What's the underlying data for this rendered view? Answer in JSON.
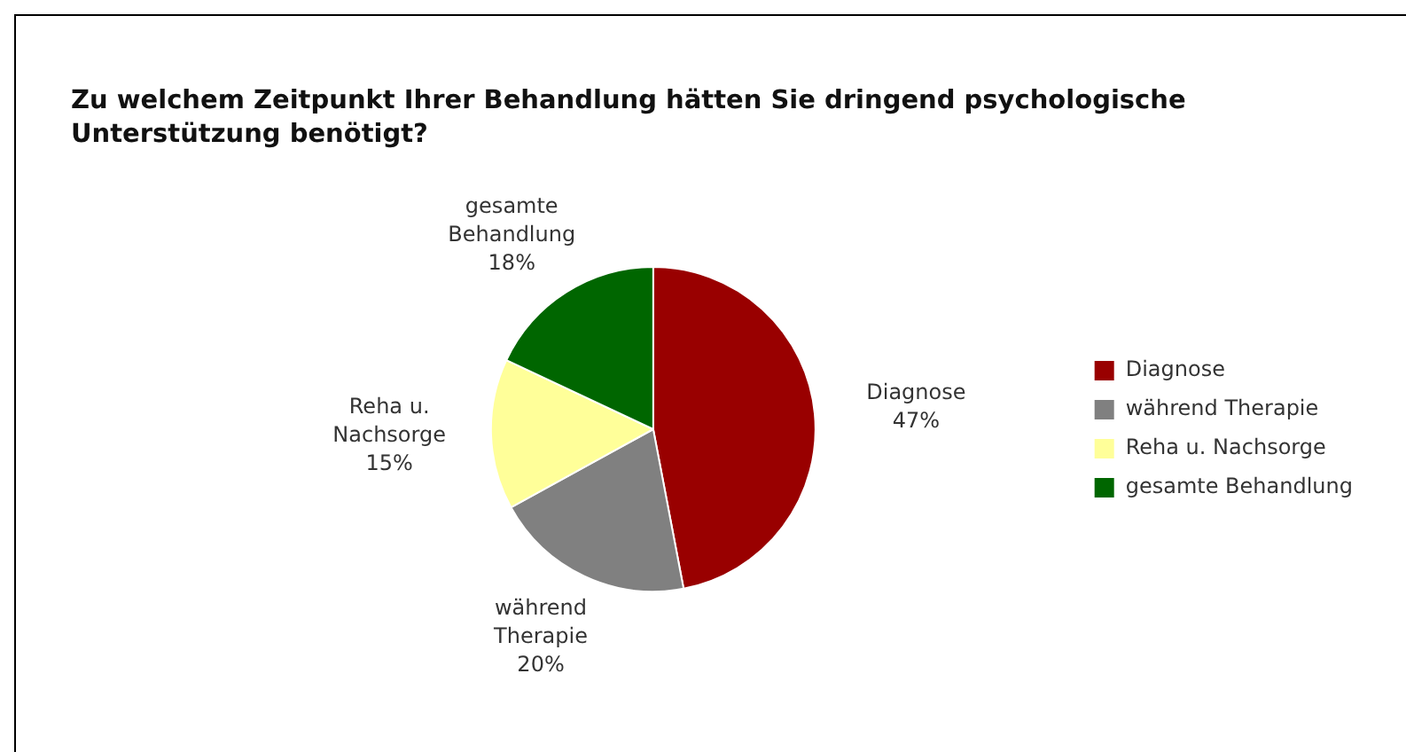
{
  "chart_data": {
    "type": "pie",
    "title": "Zu welchem Zeitpunkt Ihrer Behandlung hätten Sie dringend psychologische Unterstützung benötigt?",
    "categories": [
      "Diagnose",
      "während Therapie",
      "Reha u. Nachsorge",
      "gesamte Behandlung"
    ],
    "values": [
      47,
      20,
      15,
      18
    ],
    "value_labels": [
      "47%",
      "20%",
      "15%",
      "18%"
    ],
    "colors": [
      "#990000",
      "#808080",
      "#ffff99",
      "#006600"
    ],
    "legend": "right"
  }
}
